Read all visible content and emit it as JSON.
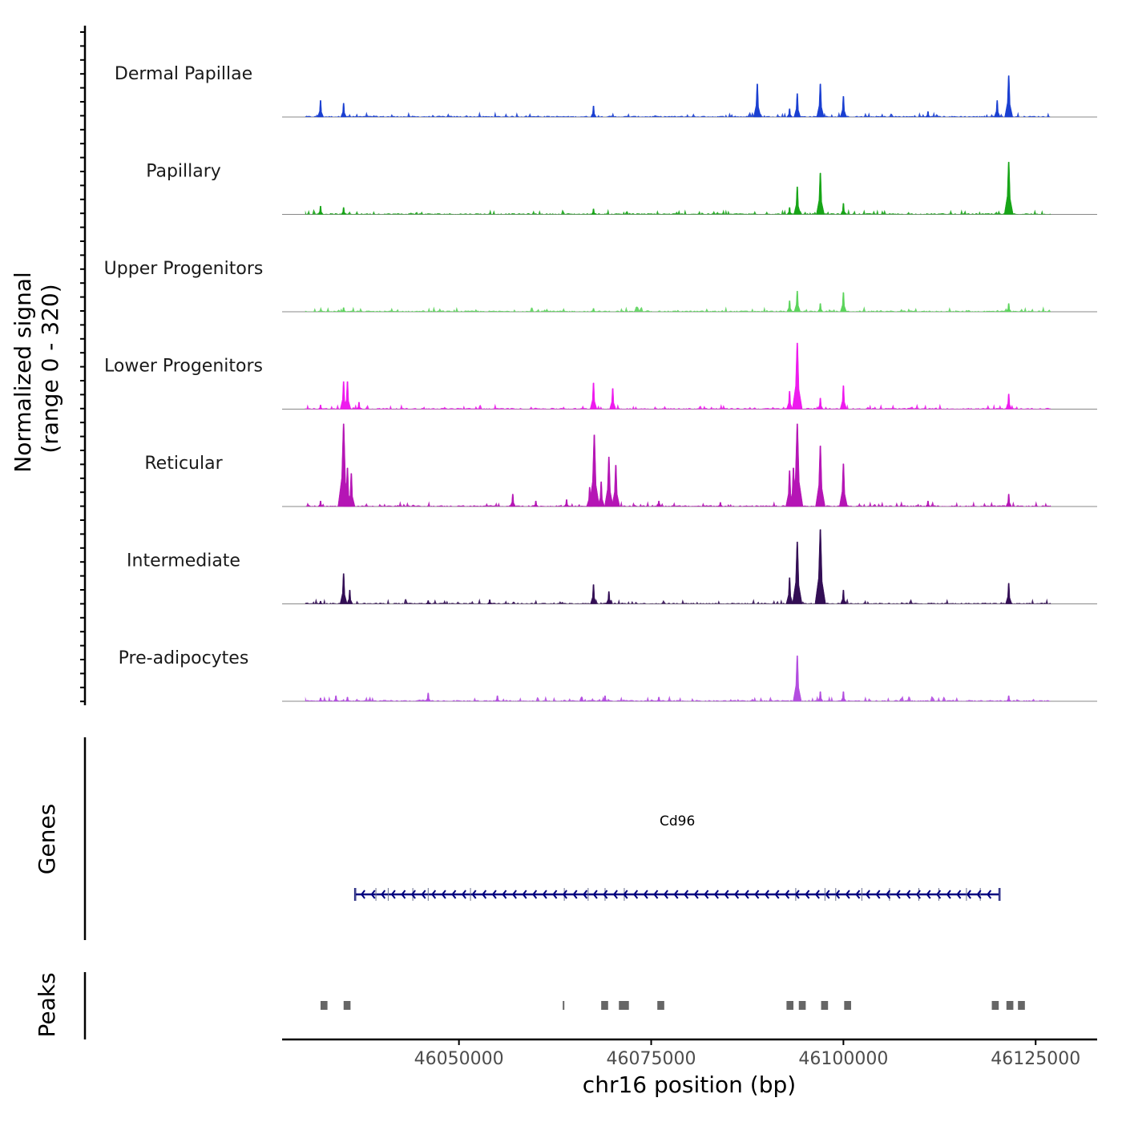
{
  "chart_data": {
    "type": "area",
    "title": "",
    "chromosome": "chr16",
    "xlabel": "chr16 position (bp)",
    "ylabel": "Normalized signal\n(range 0 - 320)",
    "ylim": [
      0,
      320
    ],
    "xlim": [
      46027000,
      46133000
    ],
    "x_ticks": [
      46050000,
      46075000,
      46100000,
      46125000
    ],
    "x_tick_labels": [
      "46050000",
      "46075000",
      "46100000",
      "46125000"
    ],
    "tracks": [
      {
        "name": "Dermal Papillae",
        "color": "#1a3fd1",
        "peaks": [
          [
            46032000,
            60
          ],
          [
            46035000,
            50
          ],
          [
            46067500,
            40
          ],
          [
            46088800,
            120
          ],
          [
            46093000,
            30
          ],
          [
            46094000,
            85
          ],
          [
            46097000,
            120
          ],
          [
            46100000,
            75
          ],
          [
            46111000,
            20
          ],
          [
            46120000,
            60
          ],
          [
            46121500,
            150
          ]
        ]
      },
      {
        "name": "Papillary",
        "color": "#17a517",
        "peaks": [
          [
            46032000,
            30
          ],
          [
            46035000,
            25
          ],
          [
            46067500,
            20
          ],
          [
            46093000,
            25
          ],
          [
            46094000,
            100
          ],
          [
            46097000,
            150
          ],
          [
            46100000,
            40
          ],
          [
            46121500,
            190
          ]
        ]
      },
      {
        "name": "Upper Progenitors",
        "color": "#5cd45c",
        "peaks": [
          [
            46035000,
            15
          ],
          [
            46067500,
            12
          ],
          [
            46093000,
            40
          ],
          [
            46094000,
            75
          ],
          [
            46097000,
            30
          ],
          [
            46100000,
            70
          ],
          [
            46121500,
            30
          ]
        ]
      },
      {
        "name": "Lower Progenitors",
        "color": "#ee1aee",
        "peaks": [
          [
            46032000,
            15
          ],
          [
            46035000,
            100
          ],
          [
            46035500,
            100
          ],
          [
            46037000,
            25
          ],
          [
            46067500,
            95
          ],
          [
            46070000,
            75
          ],
          [
            46093000,
            65
          ],
          [
            46094000,
            240
          ],
          [
            46097000,
            40
          ],
          [
            46100000,
            85
          ],
          [
            46121500,
            55
          ]
        ]
      },
      {
        "name": "Reticular",
        "color": "#b515b5",
        "peaks": [
          [
            46032000,
            20
          ],
          [
            46035000,
            300
          ],
          [
            46035500,
            140
          ],
          [
            46036000,
            120
          ],
          [
            46057000,
            45
          ],
          [
            46060000,
            20
          ],
          [
            46064000,
            25
          ],
          [
            46067000,
            70
          ],
          [
            46067600,
            260
          ],
          [
            46068500,
            90
          ],
          [
            46069500,
            180
          ],
          [
            46070400,
            150
          ],
          [
            46076000,
            20
          ],
          [
            46084000,
            15
          ],
          [
            46093000,
            130
          ],
          [
            46093500,
            140
          ],
          [
            46094000,
            300
          ],
          [
            46097000,
            220
          ],
          [
            46100000,
            155
          ],
          [
            46111000,
            20
          ],
          [
            46121500,
            45
          ]
        ]
      },
      {
        "name": "Intermediate",
        "color": "#330e55",
        "peaks": [
          [
            46032000,
            10
          ],
          [
            46035000,
            110
          ],
          [
            46035800,
            50
          ],
          [
            46046000,
            12
          ],
          [
            46054000,
            15
          ],
          [
            46067500,
            70
          ],
          [
            46069500,
            45
          ],
          [
            46093000,
            95
          ],
          [
            46094000,
            225
          ],
          [
            46097000,
            270
          ],
          [
            46100000,
            50
          ],
          [
            46121500,
            75
          ]
        ]
      },
      {
        "name": "Pre-adipocytes",
        "color": "#b34de0",
        "peaks": [
          [
            46032000,
            12
          ],
          [
            46034000,
            20
          ],
          [
            46035500,
            15
          ],
          [
            46046000,
            30
          ],
          [
            46055000,
            20
          ],
          [
            46066000,
            15
          ],
          [
            46069000,
            20
          ],
          [
            46076000,
            15
          ],
          [
            46094000,
            165
          ],
          [
            46097000,
            35
          ],
          [
            46100000,
            35
          ],
          [
            46121500,
            20
          ]
        ]
      }
    ],
    "genes": [
      {
        "name": "Cd96",
        "start": 46036500,
        "end": 46120300,
        "strand": "-",
        "color": "#00007f",
        "exons": [
          46036500,
          46039200,
          46040800,
          46044000,
          46046000,
          46051500,
          46063700,
          46066800,
          46069000,
          46071500,
          46093800,
          46097600,
          46099000,
          46102400,
          46106000,
          46109800,
          46112400,
          46116000,
          46117800,
          46120300
        ]
      }
    ],
    "peaks_track": [
      [
        46032000,
        46032900
      ],
      [
        46035000,
        46035900
      ],
      [
        46063500,
        46063700
      ],
      [
        46068500,
        46069400
      ],
      [
        46070800,
        46072100
      ],
      [
        46075800,
        46076700
      ],
      [
        46092600,
        46093500
      ],
      [
        46094200,
        46095100
      ],
      [
        46097100,
        46098000
      ],
      [
        46100100,
        46101000
      ],
      [
        46119300,
        46120200
      ],
      [
        46121200,
        46122100
      ],
      [
        46122700,
        46123600
      ]
    ],
    "panel_labels": [
      "Genes",
      "Peaks"
    ]
  }
}
